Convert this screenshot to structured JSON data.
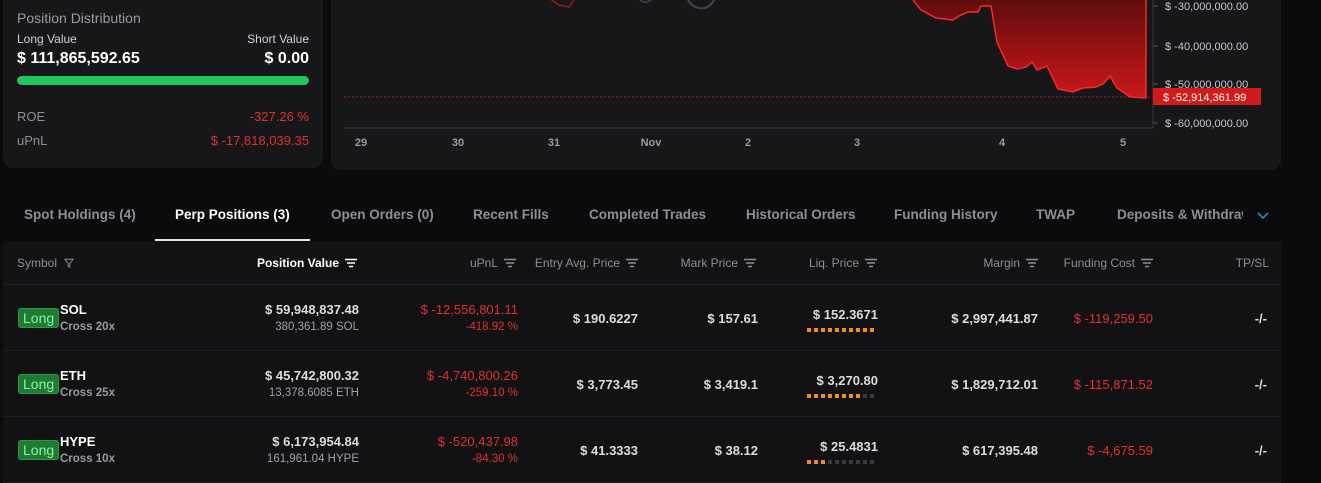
{
  "position_distribution": {
    "title": "Position Distribution",
    "long_label": "Long Value",
    "short_label": "Short Value",
    "long_value": "$ 111,865,592.65",
    "short_value": "$ 0.00",
    "long_share": 1.0,
    "roe_label": "ROE",
    "roe_value": "-327.26 %",
    "upnl_label": "uPnL",
    "upnl_value": "$ -17,818,039.35"
  },
  "chart": {
    "y_ticks": [
      "$ -30,000,000.00",
      "$ -40,000,000.00",
      "$ -50,000,000.00",
      "$ -60,000,000.00"
    ],
    "x_ticks": [
      "29",
      "30",
      "31",
      "Nov",
      "2",
      "3",
      "4",
      "5"
    ],
    "current_label": "$ -52,914,361.99",
    "fill_color": "#b81414",
    "line_color": "#ff2a2a"
  },
  "tabs": {
    "items": [
      {
        "label": "Spot Holdings (4)"
      },
      {
        "label": "Perp Positions (3)"
      },
      {
        "label": "Open Orders (0)"
      },
      {
        "label": "Recent Fills"
      },
      {
        "label": "Completed Trades"
      },
      {
        "label": "Historical Orders"
      },
      {
        "label": "Funding History"
      },
      {
        "label": "TWAP"
      },
      {
        "label": "Deposits & Withdrawals"
      }
    ],
    "active": "Perp Positions (3)"
  },
  "table": {
    "headers": {
      "symbol": "Symbol",
      "position_value": "Position Value",
      "upnl": "uPnL",
      "entry": "Entry Avg. Price",
      "mark": "Mark Price",
      "liq": "Liq. Price",
      "margin": "Margin",
      "funding": "Funding Cost",
      "tpsl": "TP/SL"
    },
    "rows": [
      {
        "side": "Long",
        "symbol": "SOL",
        "leverage": "Cross 20x",
        "position_value": "$ 59,948,837.48",
        "position_size": "380,361.89 SOL",
        "upnl": "$ -12,556,801.11",
        "upnl_pct": "-418.92 %",
        "entry": "$ 190.6227",
        "mark": "$ 157.61",
        "liq": "$ 152.3671",
        "liq_risk_level": 10,
        "margin": "$ 2,997,441.87",
        "funding": "$ -119,259.50",
        "tpsl": "-/-"
      },
      {
        "side": "Long",
        "symbol": "ETH",
        "leverage": "Cross 25x",
        "position_value": "$ 45,742,800.32",
        "position_size": "13,378.6085 ETH",
        "upnl": "$ -4,740,800.26",
        "upnl_pct": "-259.10 %",
        "entry": "$ 3,773.45",
        "mark": "$ 3,419.1",
        "liq": "$ 3,270.80",
        "liq_risk_level": 8,
        "margin": "$ 1,829,712.01",
        "funding": "$ -115,871.52",
        "tpsl": "-/-"
      },
      {
        "side": "Long",
        "symbol": "HYPE",
        "leverage": "Cross 10x",
        "position_value": "$ 6,173,954.84",
        "position_size": "161,961.04 HYPE",
        "upnl": "$ -520,437.98",
        "upnl_pct": "-84.30 %",
        "entry": "$ 41.3333",
        "mark": "$ 38.12",
        "liq": "$ 25.4831",
        "liq_risk_level": 3,
        "margin": "$ 617,395.48",
        "funding": "$ -4,675.59",
        "tpsl": "-/-"
      }
    ]
  }
}
